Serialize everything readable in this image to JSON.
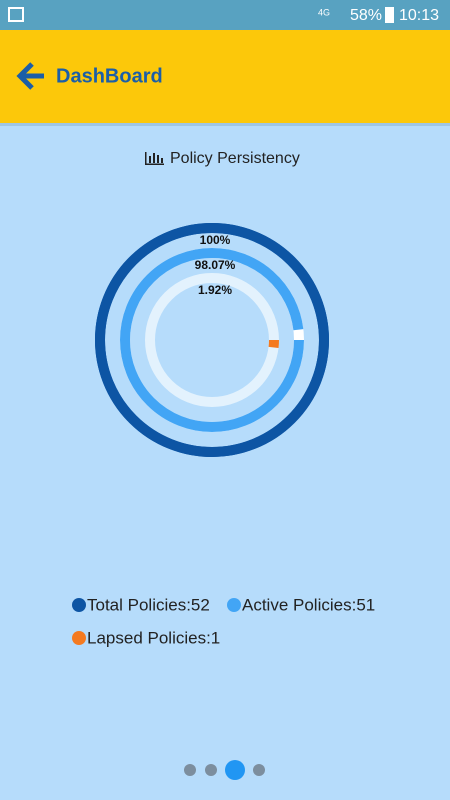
{
  "status_bar": {
    "network": "4G",
    "battery": "58%",
    "time": "10:13"
  },
  "header": {
    "title": "DashBoard"
  },
  "chart_data": {
    "type": "radial",
    "title": "Policy Persistency",
    "categories": [
      "Total Policies:52",
      "Active Policies:51",
      "Lapsed Policies:1"
    ],
    "values": [
      100,
      98.07,
      1.92
    ],
    "value_labels": [
      "100%",
      "98.07%",
      "1.92%"
    ],
    "colors": [
      "#0d55a4",
      "#42a5f5",
      "#f47a20"
    ],
    "ylim": [
      0,
      100
    ]
  }
}
